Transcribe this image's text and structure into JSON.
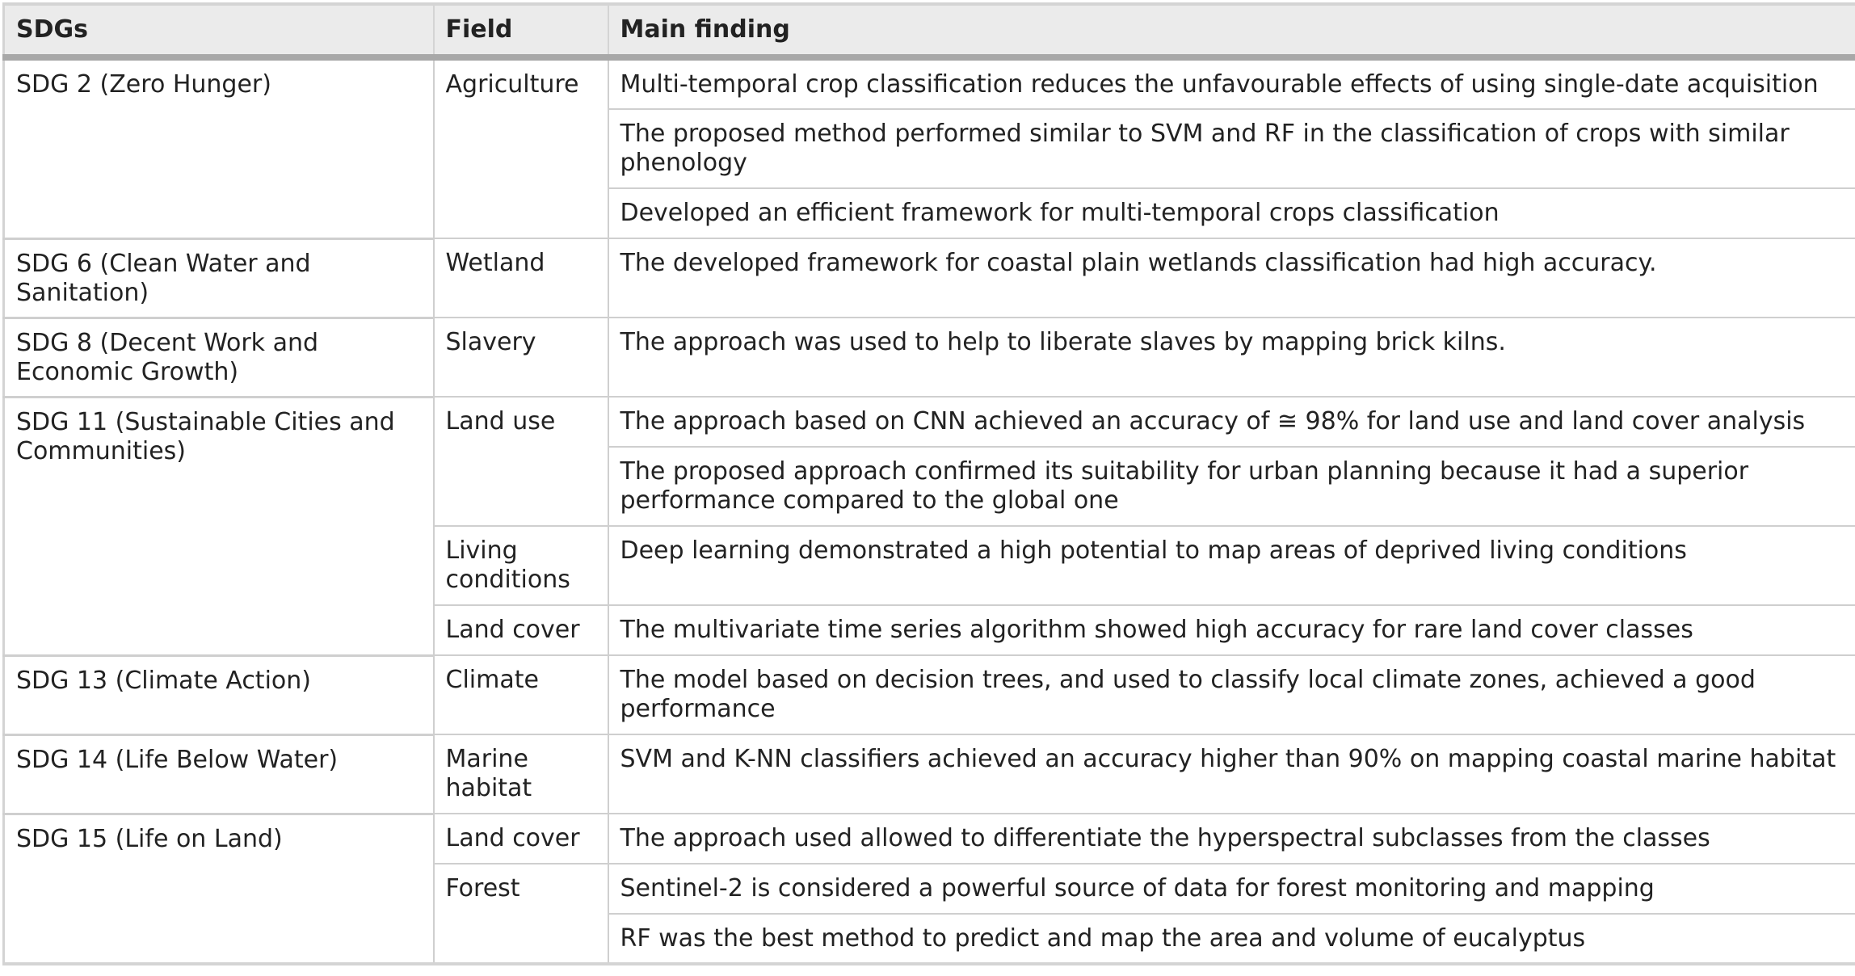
{
  "headers": {
    "sdgs": "SDGs",
    "field": "Field",
    "finding": "Main finding"
  },
  "rows": [
    {
      "sdg": "SDG 2 (Zero Hunger)",
      "field": "Agriculture",
      "finding": "Multi-temporal crop classification reduces the unfavourable effects of using single-date acquisition"
    },
    {
      "finding": "The proposed method performed similar to SVM and RF in the classification of crops with similar phenology"
    },
    {
      "finding": "Developed an efficient framework for multi-temporal crops classification"
    },
    {
      "sdg": "SDG 6 (Clean Water and Sanitation)",
      "field": "Wetland",
      "finding": "The developed framework for coastal plain wetlands classification had high accuracy."
    },
    {
      "sdg": "SDG 8 (Decent Work and Economic Growth)",
      "field": "Slavery",
      "finding": "The approach was used to help to liberate slaves by mapping brick kilns."
    },
    {
      "sdg": "SDG 11 (Sustainable Cities and Communities)",
      "field": "Land use",
      "finding": "The approach based on CNN achieved an accuracy of ≅ 98% for land use and land cover analysis"
    },
    {
      "finding": "The proposed approach confirmed its suitability for urban planning because it had a superior performance compared to the global one"
    },
    {
      "field": "Living conditions",
      "finding": "Deep learning demonstrated a high potential to map areas of deprived living conditions"
    },
    {
      "field": "Land cover",
      "finding": "The multivariate time series algorithm showed high accuracy for rare land cover classes"
    },
    {
      "sdg": "SDG 13 (Climate Action)",
      "field": "Climate",
      "finding": "The model based on decision trees, and used to classify local climate zones, achieved a good performance"
    },
    {
      "sdg": "SDG 14 (Life Below Water)",
      "field": "Marine habitat",
      "finding": "SVM and K-NN classifiers achieved an accuracy higher than 90% on mapping coastal marine habitat"
    },
    {
      "sdg": "SDG 15 (Life on Land)",
      "field": "Land cover",
      "finding": "The approach used allowed to differentiate the hyperspectral subclasses from the classes"
    },
    {
      "field": "Forest",
      "finding": "Sentinel-2 is considered a powerful source of data for forest monitoring and mapping"
    },
    {
      "finding": "RF was the best method to predict and map the area and volume of eucalyptus"
    }
  ]
}
